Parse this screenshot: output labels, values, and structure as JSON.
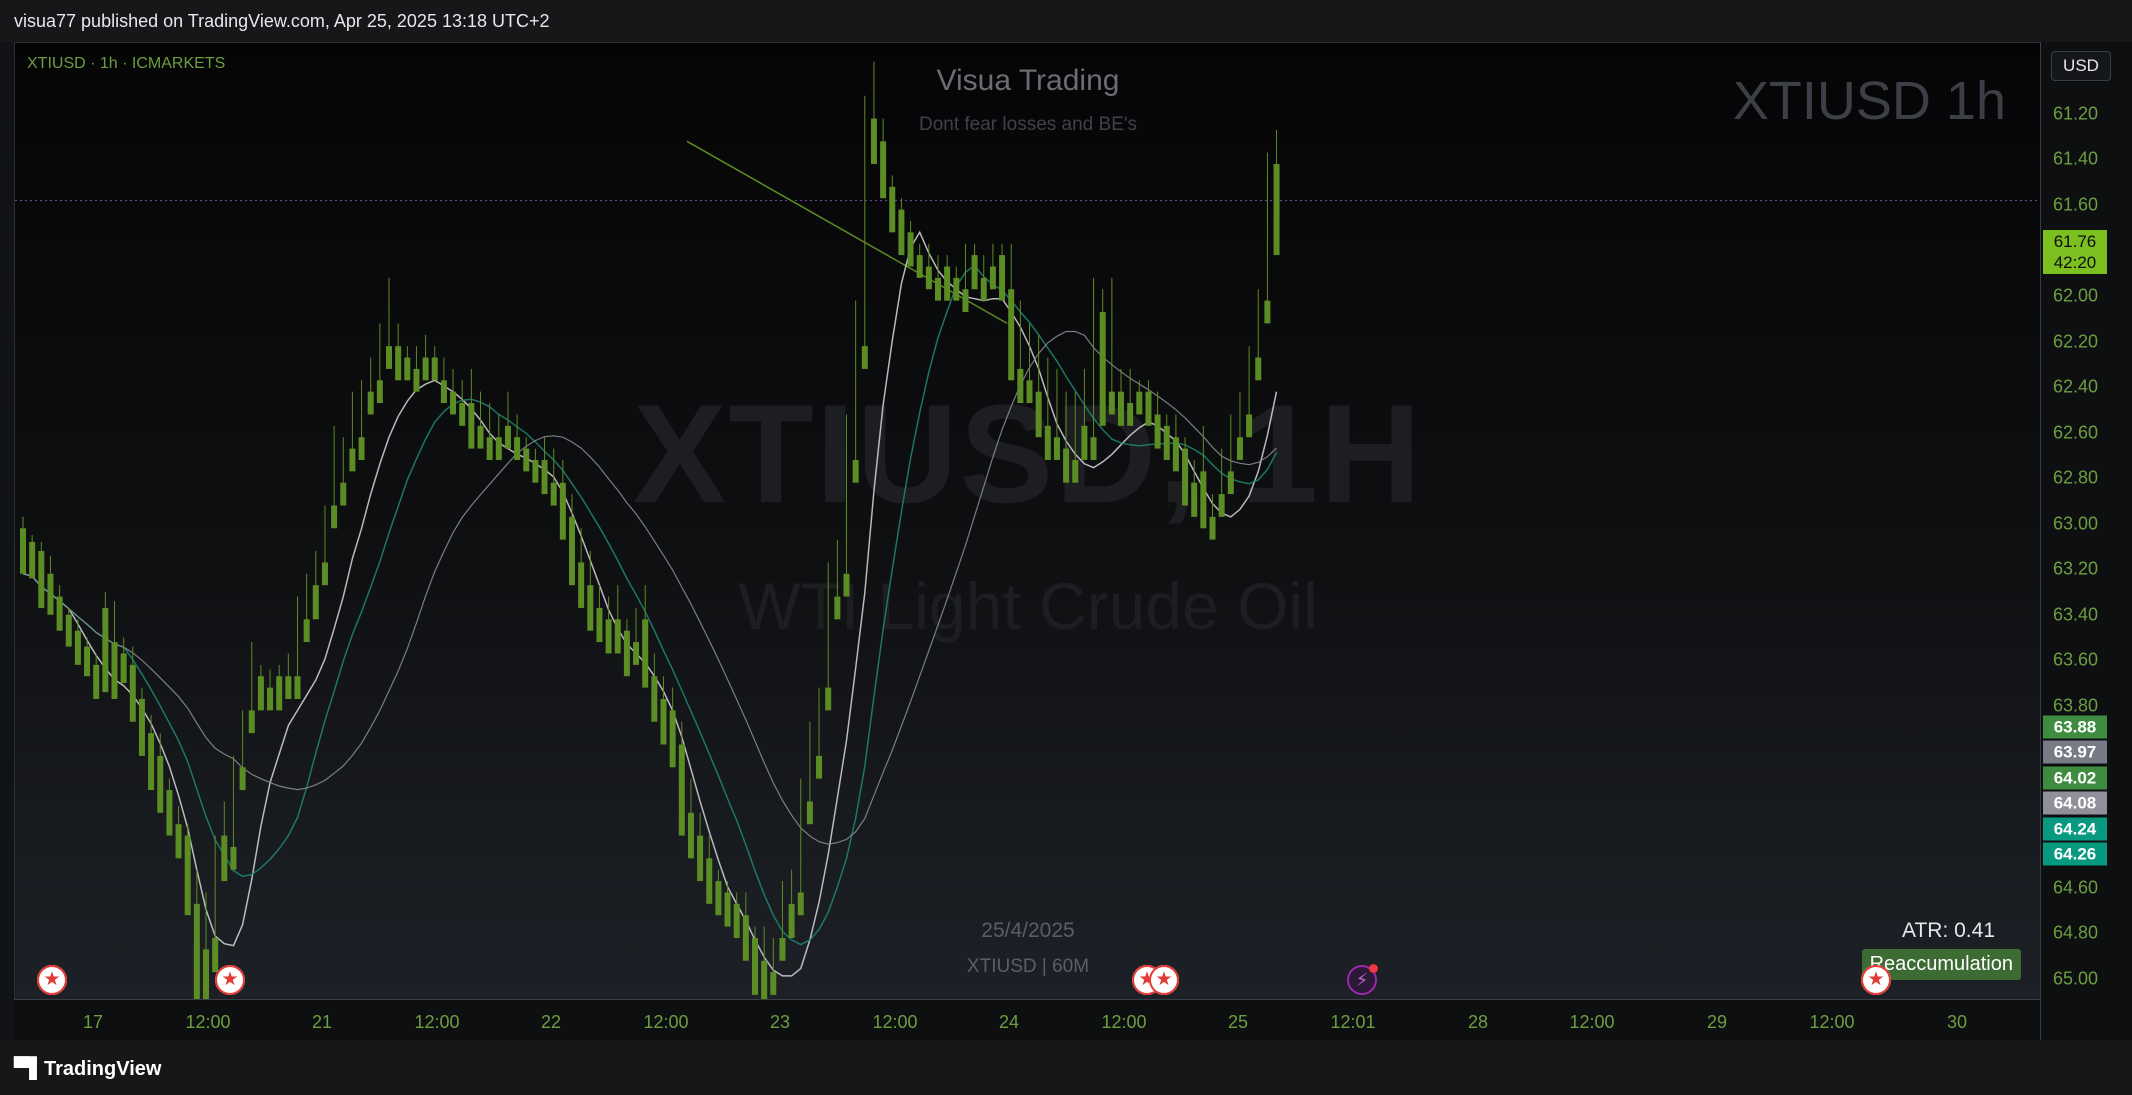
{
  "header": {
    "publish_line": "visua77 published on TradingView.com, Apr 25, 2025 13:18 UTC+2"
  },
  "chart": {
    "symbol_line": "XTIUSD · 1h · ICMARKETS",
    "brand_title": "Visua Trading",
    "brand_subtitle": "Dont fear losses and BE's",
    "top_right_label": "XTIUSD 1h",
    "watermark_symbol": "XTIUSD, 1H",
    "watermark_name": "WTI Light Crude Oil",
    "date_stamp": "25/4/2025",
    "symbol_stamp": "XTIUSD | 60M",
    "atr_label": "ATR: 0.41",
    "reaccumulation_label": "Reaccumulation",
    "event_icons": [
      "us-flag-icon",
      "us-flag-icon",
      "us-flag-icon",
      "us-flag-icon",
      "bolt-icon",
      "us-flag-icon"
    ]
  },
  "x_axis": {
    "labels": [
      "17",
      "12:00",
      "21",
      "12:00",
      "22",
      "12:00",
      "23",
      "12:00",
      "24",
      "12:00",
      "25",
      "12:01",
      "28",
      "12:00",
      "29",
      "12:00",
      "30"
    ]
  },
  "y_axis": {
    "currency": "USD",
    "labels": [
      "61.20",
      "61.40",
      "61.60",
      "62.00",
      "62.20",
      "62.40",
      "62.60",
      "62.80",
      "63.00",
      "63.20",
      "63.40",
      "63.60",
      "63.80",
      "64.60",
      "64.80",
      "65.00"
    ],
    "current_price": "61.76",
    "countdown": "42:20",
    "price_tags": [
      {
        "value": "63.88",
        "color": "#3d8c40"
      },
      {
        "value": "63.97",
        "color": "#787b86"
      },
      {
        "value": "64.02",
        "color": "#3d8c40"
      },
      {
        "value": "64.08",
        "color": "#8f9099"
      },
      {
        "value": "64.24",
        "color": "#089981"
      },
      {
        "value": "64.26",
        "color": "#089981"
      }
    ]
  },
  "colors": {
    "bull": "#e8e8ea",
    "bear": "#5c8c24",
    "accent": "#7cc020"
  },
  "chart_data": {
    "type": "candlestick",
    "symbol": "XTIUSD",
    "timeframe": "1h",
    "candles_ohlc": [
      [
        63.2,
        63.15,
        63.28,
        63.4
      ],
      [
        63.26,
        63.23,
        63.35,
        63.42
      ],
      [
        63.3,
        63.26,
        63.45,
        63.55
      ],
      [
        63.4,
        63.32,
        63.55,
        63.58
      ],
      [
        63.5,
        63.45,
        63.6,
        63.65
      ],
      [
        63.58,
        63.55,
        63.7,
        63.72
      ],
      [
        63.65,
        63.6,
        63.75,
        63.8
      ],
      [
        63.72,
        63.68,
        63.82,
        63.85
      ],
      [
        63.8,
        63.75,
        63.9,
        63.95
      ],
      [
        63.55,
        63.48,
        63.88,
        63.92
      ],
      [
        63.7,
        63.52,
        63.75,
        63.95
      ],
      [
        63.75,
        63.68,
        63.85,
        63.88
      ],
      [
        63.8,
        63.72,
        64.0,
        64.05
      ],
      [
        63.95,
        63.9,
        64.15,
        64.2
      ],
      [
        64.1,
        64.02,
        64.3,
        64.35
      ],
      [
        64.2,
        64.1,
        64.4,
        64.45
      ],
      [
        64.35,
        64.3,
        64.5,
        64.55
      ],
      [
        64.5,
        64.42,
        64.6,
        64.65
      ],
      [
        64.55,
        64.5,
        64.85,
        64.9
      ],
      [
        64.85,
        64.7,
        65.25,
        65.3
      ],
      [
        65.05,
        64.8,
        65.2,
        65.4
      ],
      [
        65.0,
        64.55,
        65.05,
        65.15
      ],
      [
        64.55,
        64.4,
        64.65,
        64.75
      ],
      [
        64.6,
        64.2,
        64.65,
        64.7
      ],
      [
        64.25,
        64.0,
        64.3,
        64.35
      ],
      [
        64.0,
        63.7,
        64.05,
        64.1
      ],
      [
        63.85,
        63.8,
        63.9,
        64.0
      ],
      [
        63.9,
        63.82,
        63.95,
        64.0
      ],
      [
        63.85,
        63.8,
        63.92,
        64.0
      ],
      [
        63.85,
        63.75,
        63.9,
        63.95
      ],
      [
        63.85,
        63.5,
        63.88,
        63.95
      ],
      [
        63.6,
        63.4,
        63.65,
        63.7
      ],
      [
        63.45,
        63.3,
        63.5,
        63.6
      ],
      [
        63.35,
        63.1,
        63.4,
        63.45
      ],
      [
        63.1,
        62.75,
        63.15,
        63.2
      ],
      [
        63.0,
        62.8,
        63.05,
        63.1
      ],
      [
        62.85,
        62.6,
        62.9,
        62.95
      ],
      [
        62.8,
        62.55,
        62.85,
        62.9
      ],
      [
        62.6,
        62.45,
        62.65,
        62.7
      ],
      [
        62.55,
        62.3,
        62.6,
        62.65
      ],
      [
        62.4,
        62.1,
        62.45,
        62.5
      ],
      [
        62.4,
        62.3,
        62.5,
        62.55
      ],
      [
        62.45,
        62.4,
        62.5,
        62.55
      ],
      [
        62.5,
        62.4,
        62.55,
        62.6
      ],
      [
        62.45,
        62.35,
        62.5,
        62.55
      ],
      [
        62.45,
        62.4,
        62.5,
        62.55
      ],
      [
        62.55,
        62.45,
        62.6,
        62.65
      ],
      [
        62.6,
        62.5,
        62.65,
        62.7
      ],
      [
        62.65,
        62.55,
        62.7,
        62.75
      ],
      [
        62.65,
        62.5,
        62.8,
        62.85
      ],
      [
        62.75,
        62.6,
        62.8,
        62.85
      ],
      [
        62.8,
        62.65,
        62.85,
        62.9
      ],
      [
        62.8,
        62.7,
        62.85,
        62.9
      ],
      [
        62.75,
        62.6,
        62.8,
        62.85
      ],
      [
        62.8,
        62.7,
        62.85,
        62.9
      ],
      [
        62.85,
        62.8,
        62.9,
        62.95
      ],
      [
        62.9,
        62.85,
        62.95,
        63.0
      ],
      [
        62.9,
        62.8,
        63.0,
        63.05
      ],
      [
        63.0,
        62.85,
        63.05,
        63.1
      ],
      [
        63.0,
        62.9,
        63.2,
        63.25
      ],
      [
        63.15,
        63.05,
        63.4,
        63.45
      ],
      [
        63.35,
        63.2,
        63.5,
        63.55
      ],
      [
        63.45,
        63.3,
        63.6,
        63.65
      ],
      [
        63.55,
        63.45,
        63.65,
        63.7
      ],
      [
        63.6,
        63.5,
        63.65,
        63.75
      ],
      [
        63.6,
        63.45,
        63.7,
        63.75
      ],
      [
        63.65,
        63.6,
        63.8,
        63.85
      ],
      [
        63.7,
        63.55,
        63.75,
        63.8
      ],
      [
        63.6,
        63.45,
        63.85,
        63.9
      ],
      [
        63.85,
        63.75,
        64.0,
        64.05
      ],
      [
        63.95,
        63.85,
        64.1,
        64.15
      ],
      [
        64.0,
        63.9,
        64.2,
        64.25
      ],
      [
        64.15,
        64.05,
        64.5,
        64.55
      ],
      [
        64.45,
        64.3,
        64.6,
        64.65
      ],
      [
        64.55,
        64.45,
        64.7,
        64.75
      ],
      [
        64.65,
        64.55,
        64.8,
        64.85
      ],
      [
        64.75,
        64.7,
        64.85,
        64.9
      ],
      [
        64.8,
        64.75,
        64.9,
        64.95
      ],
      [
        64.85,
        64.8,
        64.95,
        65.0
      ],
      [
        64.9,
        64.8,
        64.95,
        65.1
      ],
      [
        65.0,
        64.95,
        65.2,
        65.25
      ],
      [
        65.1,
        64.95,
        65.25,
        65.3
      ],
      [
        65.15,
        65.0,
        65.2,
        65.25
      ],
      [
        65.0,
        64.75,
        65.05,
        65.1
      ],
      [
        64.85,
        64.7,
        64.9,
        65.0
      ],
      [
        64.8,
        64.3,
        64.85,
        64.9
      ],
      [
        64.4,
        64.05,
        64.45,
        64.5
      ],
      [
        64.2,
        63.9,
        64.25,
        64.3
      ],
      [
        63.9,
        63.35,
        63.95,
        64.0
      ],
      [
        63.5,
        63.25,
        63.55,
        63.6
      ],
      [
        63.4,
        62.7,
        63.45,
        63.5
      ],
      [
        62.9,
        62.2,
        62.95,
        63.0
      ],
      [
        62.4,
        61.3,
        62.45,
        62.5
      ],
      [
        61.4,
        61.15,
        61.5,
        61.6
      ],
      [
        61.5,
        61.4,
        61.7,
        61.75
      ],
      [
        61.7,
        61.65,
        61.85,
        61.9
      ],
      [
        61.8,
        61.75,
        61.95,
        62.0
      ],
      [
        61.9,
        61.85,
        62.0,
        62.05
      ],
      [
        62.0,
        61.95,
        62.05,
        62.1
      ],
      [
        62.05,
        61.95,
        62.1,
        62.15
      ],
      [
        62.1,
        62.0,
        62.15,
        62.2
      ],
      [
        62.05,
        62.0,
        62.15,
        62.2
      ],
      [
        62.1,
        62.05,
        62.15,
        62.2
      ],
      [
        62.15,
        61.95,
        62.2,
        62.25
      ],
      [
        62.0,
        61.95,
        62.1,
        62.15
      ],
      [
        62.1,
        62.0,
        62.15,
        62.2
      ],
      [
        62.05,
        61.95,
        62.1,
        62.15
      ],
      [
        62.0,
        61.95,
        62.15,
        62.2
      ],
      [
        62.15,
        61.95,
        62.5,
        62.55
      ],
      [
        62.5,
        62.2,
        62.6,
        62.65
      ],
      [
        62.55,
        62.3,
        62.6,
        62.65
      ],
      [
        62.6,
        62.35,
        62.75,
        62.8
      ],
      [
        62.75,
        62.45,
        62.85,
        62.9
      ],
      [
        62.8,
        62.5,
        62.85,
        62.9
      ],
      [
        62.85,
        62.6,
        62.95,
        63.0
      ],
      [
        62.9,
        62.6,
        62.95,
        63.0
      ],
      [
        62.75,
        62.5,
        62.85,
        62.9
      ],
      [
        62.8,
        62.1,
        62.85,
        62.9
      ],
      [
        62.25,
        62.15,
        62.7,
        62.75
      ],
      [
        62.6,
        62.1,
        62.65,
        62.7
      ],
      [
        62.6,
        62.5,
        62.7,
        62.75
      ],
      [
        62.65,
        62.5,
        62.7,
        62.75
      ],
      [
        62.6,
        62.55,
        62.65,
        62.7
      ],
      [
        62.6,
        62.55,
        62.7,
        62.75
      ],
      [
        62.7,
        62.6,
        62.8,
        62.85
      ],
      [
        62.75,
        62.7,
        62.85,
        62.9
      ],
      [
        62.8,
        62.7,
        62.9,
        62.95
      ],
      [
        62.85,
        62.8,
        63.0,
        63.1
      ],
      [
        63.0,
        62.9,
        63.1,
        63.15
      ],
      [
        62.95,
        62.75,
        63.15,
        63.2
      ],
      [
        63.15,
        63.05,
        63.2,
        63.25
      ],
      [
        63.05,
        62.85,
        63.1,
        63.15
      ],
      [
        62.95,
        62.7,
        63.0,
        63.05
      ],
      [
        62.8,
        62.6,
        62.85,
        62.9
      ],
      [
        62.7,
        62.4,
        62.75,
        62.8
      ],
      [
        62.45,
        62.15,
        62.5,
        62.55
      ],
      [
        62.2,
        61.55,
        62.25,
        62.3
      ],
      [
        61.6,
        61.45,
        61.95,
        62.0
      ]
    ],
    "ylim": [
      61.2,
      65.0
    ],
    "x_labels": [
      "17",
      "12:00",
      "21",
      "12:00",
      "22",
      "12:00",
      "23",
      "12:00",
      "24",
      "12:00",
      "25",
      "12:01",
      "28",
      "12:00",
      "29",
      "12:00",
      "30"
    ],
    "current_price": 61.76
  }
}
